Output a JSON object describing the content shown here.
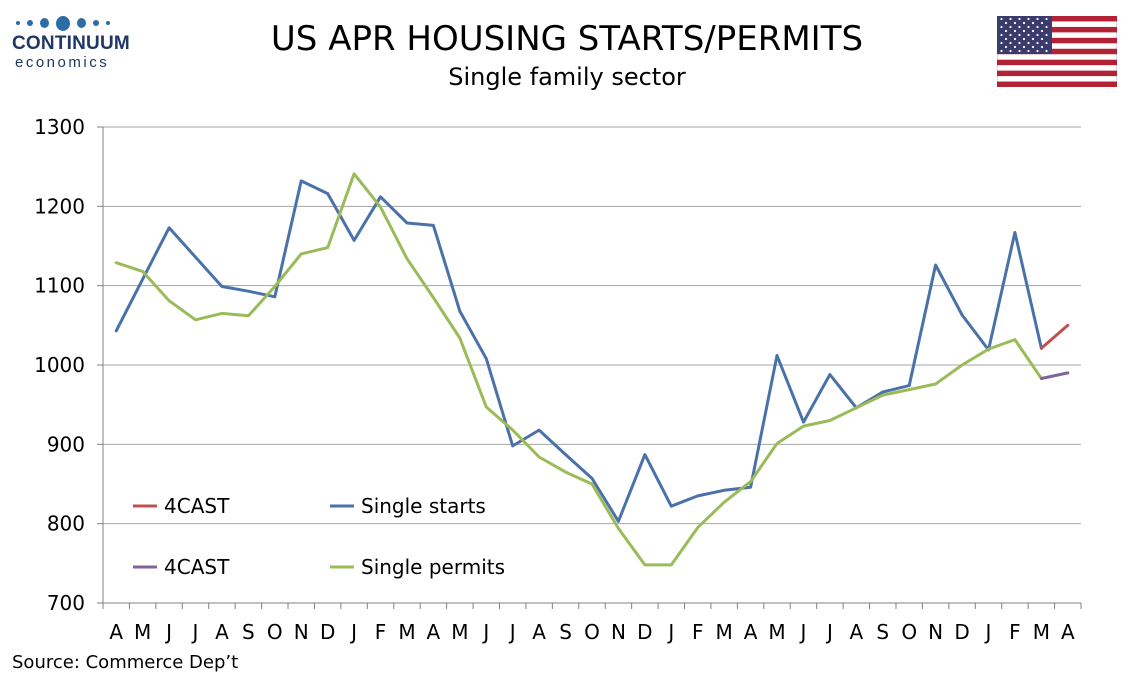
{
  "header": {
    "title": "US APR HOUSING STARTS/PERMITS",
    "subtitle": "Single family sector"
  },
  "logo": {
    "name": "CONTINUUM",
    "tagline": "economics",
    "color": "#1f3864"
  },
  "flag": {
    "icon": "us-flag-icon"
  },
  "footer": {
    "source": "Source: Commerce Dep’t"
  },
  "chart_data": {
    "type": "line",
    "title": "US APR HOUSING STARTS/PERMITS",
    "subtitle": "Single family sector",
    "categories": [
      "A",
      "M",
      "J",
      "J",
      "A",
      "S",
      "O",
      "N",
      "D",
      "J",
      "F",
      "M",
      "A",
      "M",
      "J",
      "J",
      "A",
      "S",
      "O",
      "N",
      "D",
      "J",
      "F",
      "M",
      "A",
      "M",
      "J",
      "J",
      "A",
      "S",
      "O",
      "N",
      "D",
      "J",
      "F",
      "M",
      "A"
    ],
    "ylim": [
      700,
      1300
    ],
    "yticks": [
      700,
      800,
      900,
      1000,
      1100,
      1200,
      1300
    ],
    "grid": true,
    "legend_position": "bottom-left",
    "series": [
      {
        "name": "Single starts",
        "color": "#4a72a8",
        "values": [
          1043,
          1108,
          1173,
          1136,
          1099,
          1093,
          1086,
          1232,
          1216,
          1157,
          1212,
          1179,
          1176,
          1068,
          1008,
          898,
          918,
          887,
          857,
          803,
          887,
          822,
          835,
          842,
          846,
          1012,
          928,
          988,
          946,
          966,
          974,
          1126,
          1063,
          1019,
          1167,
          1021,
          null
        ]
      },
      {
        "name": "Single permits",
        "color": "#9bbb59",
        "values": [
          1129,
          1118,
          1081,
          1057,
          1065,
          1062,
          1099,
          1140,
          1148,
          1241,
          1199,
          1134,
          1085,
          1034,
          947,
          918,
          884,
          865,
          850,
          794,
          748,
          748,
          795,
          827,
          853,
          901,
          923,
          930,
          946,
          962,
          969,
          976,
          1000,
          1020,
          1032,
          983,
          null
        ]
      },
      {
        "name": "4CAST",
        "color": "#c0504d",
        "values": [
          null,
          null,
          null,
          null,
          null,
          null,
          null,
          null,
          null,
          null,
          null,
          null,
          null,
          null,
          null,
          null,
          null,
          null,
          null,
          null,
          null,
          null,
          null,
          null,
          null,
          null,
          null,
          null,
          null,
          null,
          null,
          null,
          null,
          null,
          null,
          1021,
          1050
        ]
      },
      {
        "name": "4CAST",
        "color": "#8064a2",
        "values": [
          null,
          null,
          null,
          null,
          null,
          null,
          null,
          null,
          null,
          null,
          null,
          null,
          null,
          null,
          null,
          null,
          null,
          null,
          null,
          null,
          null,
          null,
          null,
          null,
          null,
          null,
          null,
          null,
          null,
          null,
          null,
          null,
          null,
          null,
          null,
          983,
          990
        ]
      }
    ]
  }
}
